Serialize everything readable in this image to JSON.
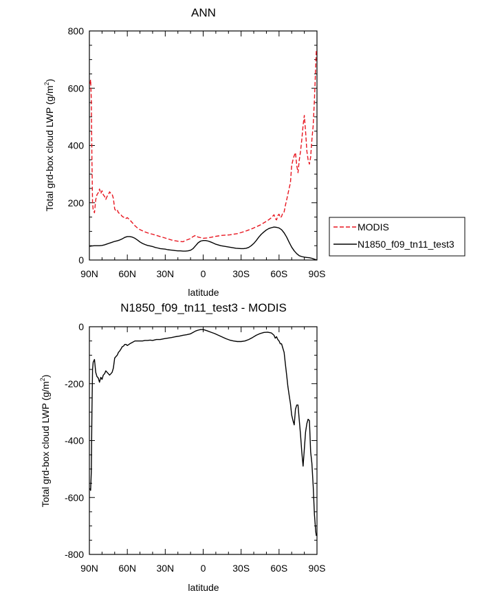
{
  "chart_data": [
    {
      "type": "line",
      "title": "ANN",
      "xlabel": "latitude",
      "ylabel": "Total grd-box cloud LWP (g/m²)",
      "ylabel_main": "Total grd-box cloud LWP (g/m",
      "ylabel_sup": "2",
      "ylabel_close": ")",
      "xlim": [
        90,
        -90
      ],
      "ylim": [
        0,
        800
      ],
      "xticks": [
        {
          "value": 90,
          "label": "90N"
        },
        {
          "value": 60,
          "label": "60N"
        },
        {
          "value": 30,
          "label": "30N"
        },
        {
          "value": 0,
          "label": "0"
        },
        {
          "value": -30,
          "label": "30S"
        },
        {
          "value": -60,
          "label": "60S"
        },
        {
          "value": -90,
          "label": "90S"
        }
      ],
      "yticks": [
        {
          "value": 0,
          "label": "0"
        },
        {
          "value": 200,
          "label": "200"
        },
        {
          "value": 400,
          "label": "400"
        },
        {
          "value": 600,
          "label": "600"
        },
        {
          "value": 800,
          "label": "800"
        }
      ],
      "grid": false,
      "legend": "right",
      "series": [
        {
          "name": "MODIS",
          "color": "#e8141e",
          "dash": "dashed",
          "x": [
            89.5,
            89,
            88.5,
            88,
            87.5,
            87,
            86,
            85,
            84,
            83,
            82,
            81,
            80,
            79,
            78,
            77,
            76,
            75,
            74,
            73,
            72,
            71,
            70,
            69,
            68,
            67,
            66,
            65,
            64,
            63,
            62,
            61,
            60,
            58,
            56,
            54,
            52,
            50,
            48,
            46,
            44,
            42,
            40,
            37,
            34,
            31,
            28,
            25,
            22,
            19,
            16,
            13,
            10,
            8,
            6,
            4,
            2,
            0,
            -3,
            -6,
            -9,
            -12,
            -15,
            -18,
            -21,
            -24,
            -27,
            -30,
            -33,
            -36,
            -39,
            -42,
            -45,
            -48,
            -51,
            -54,
            -56,
            -57,
            -58,
            -59,
            -60,
            -61,
            -62,
            -63,
            -64,
            -65,
            -66,
            -67,
            -68,
            -69,
            -70,
            -71,
            -72,
            -73,
            -74,
            -75,
            -76,
            -77,
            -78,
            -79,
            -80,
            -81,
            -82,
            -83,
            -84,
            -85,
            -86,
            -87,
            -88,
            -89,
            -89.5
          ],
          "y": [
            615,
            630,
            560,
            350,
            200,
            175,
            165,
            210,
            228,
            235,
            248,
            232,
            242,
            228,
            222,
            212,
            222,
            228,
            238,
            232,
            230,
            215,
            178,
            172,
            175,
            165,
            162,
            158,
            152,
            150,
            145,
            145,
            148,
            140,
            130,
            120,
            112,
            106,
            102,
            98,
            95,
            92,
            90,
            86,
            82,
            78,
            74,
            70,
            67,
            65,
            64,
            70,
            75,
            82,
            86,
            80,
            78,
            76,
            77,
            79,
            82,
            84,
            86,
            87,
            88,
            90,
            92,
            96,
            100,
            105,
            110,
            116,
            122,
            130,
            138,
            148,
            158,
            145,
            140,
            155,
            160,
            148,
            152,
            165,
            168,
            190,
            210,
            230,
            250,
            270,
            330,
            350,
            365,
            375,
            330,
            305,
            350,
            380,
            420,
            470,
            505,
            450,
            380,
            350,
            335,
            360,
            420,
            470,
            560,
            680,
            735
          ]
        },
        {
          "name": "N1850_f09_tn11_test3",
          "color": "#000000",
          "dash": "solid",
          "x": [
            90,
            88,
            86,
            84,
            82,
            80,
            78,
            76,
            74,
            72,
            70,
            68,
            66,
            64,
            62,
            60,
            58,
            56,
            54,
            52,
            50,
            48,
            46,
            44,
            42,
            40,
            38,
            36,
            34,
            32,
            30,
            28,
            26,
            24,
            22,
            20,
            18,
            16,
            14,
            12,
            10,
            8,
            6,
            4,
            2,
            0,
            -2,
            -4,
            -6,
            -8,
            -10,
            -14,
            -18,
            -22,
            -26,
            -30,
            -32,
            -34,
            -36,
            -38,
            -40,
            -42,
            -44,
            -46,
            -48,
            -50,
            -52,
            -54,
            -56,
            -58,
            -60,
            -62,
            -64,
            -66,
            -68,
            -70,
            -72,
            -74,
            -76,
            -78,
            -80,
            -82,
            -84,
            -86,
            -88,
            -90
          ],
          "y": [
            48,
            49,
            50,
            50,
            50,
            51,
            53,
            56,
            59,
            62,
            65,
            67,
            70,
            74,
            79,
            82,
            82,
            80,
            76,
            70,
            63,
            58,
            54,
            51,
            49,
            47,
            44,
            42,
            40,
            39,
            38,
            36,
            35,
            34,
            33,
            32,
            32,
            31,
            31,
            32,
            34,
            40,
            50,
            60,
            66,
            68,
            68,
            66,
            63,
            59,
            55,
            50,
            47,
            44,
            41,
            40,
            40,
            41,
            44,
            50,
            58,
            68,
            80,
            90,
            98,
            105,
            110,
            113,
            115,
            114,
            112,
            106,
            95,
            80,
            62,
            45,
            32,
            22,
            15,
            12,
            10,
            9,
            8,
            6,
            3,
            0
          ]
        }
      ]
    },
    {
      "type": "line",
      "title": "N1850_f09_tn11_test3 - MODIS",
      "xlabel": "latitude",
      "ylabel": "Total grd-box cloud LWP (g/m²)",
      "ylabel_main": "Total grd-box cloud LWP (g/m",
      "ylabel_sup": "2",
      "ylabel_close": ")",
      "xlim": [
        90,
        -90
      ],
      "ylim": [
        -800,
        0
      ],
      "xticks": [
        {
          "value": 90,
          "label": "90N"
        },
        {
          "value": 60,
          "label": "60N"
        },
        {
          "value": 30,
          "label": "30N"
        },
        {
          "value": 0,
          "label": "0"
        },
        {
          "value": -30,
          "label": "30S"
        },
        {
          "value": -60,
          "label": "60S"
        },
        {
          "value": -90,
          "label": "90S"
        }
      ],
      "yticks": [
        {
          "value": 0,
          "label": "0"
        },
        {
          "value": -200,
          "label": "-200"
        },
        {
          "value": -400,
          "label": "-400"
        },
        {
          "value": -600,
          "label": "-600"
        },
        {
          "value": -800,
          "label": "-800"
        }
      ],
      "grid": false,
      "series": [
        {
          "color": "#000000",
          "dash": "solid",
          "x": [
            89.5,
            89,
            88.5,
            88,
            87.5,
            87,
            86,
            85,
            84,
            83,
            82,
            81,
            80,
            79,
            78,
            77,
            76,
            75,
            74,
            73,
            72,
            71,
            70,
            69,
            68,
            67,
            66,
            65,
            64,
            63,
            62,
            61,
            60,
            58,
            56,
            54,
            52,
            50,
            48,
            46,
            44,
            42,
            40,
            37,
            34,
            31,
            28,
            25,
            22,
            19,
            16,
            13,
            10,
            8,
            6,
            4,
            2,
            0,
            -3,
            -6,
            -9,
            -12,
            -15,
            -18,
            -21,
            -24,
            -27,
            -30,
            -33,
            -36,
            -39,
            -42,
            -45,
            -48,
            -51,
            -54,
            -56,
            -57,
            -58,
            -59,
            -60,
            -61,
            -62,
            -63,
            -64,
            -65,
            -66,
            -67,
            -68,
            -69,
            -70,
            -71,
            -72,
            -73,
            -74,
            -75,
            -76,
            -77,
            -78,
            -79,
            -80,
            -81,
            -82,
            -83,
            -84,
            -85,
            -86,
            -87,
            -88,
            -89,
            -89.5
          ],
          "y": [
            -568,
            -575,
            -510,
            -300,
            -150,
            -125,
            -115,
            -160,
            -175,
            -180,
            -195,
            -178,
            -185,
            -170,
            -165,
            -155,
            -160,
            -165,
            -170,
            -165,
            -160,
            -145,
            -110,
            -105,
            -100,
            -90,
            -85,
            -78,
            -70,
            -68,
            -62,
            -62,
            -66,
            -60,
            -55,
            -50,
            -50,
            -50,
            -50,
            -48,
            -48,
            -47,
            -48,
            -45,
            -45,
            -42,
            -40,
            -38,
            -35,
            -33,
            -30,
            -28,
            -25,
            -20,
            -15,
            -12,
            -10,
            -10,
            -14,
            -19,
            -24,
            -30,
            -36,
            -42,
            -47,
            -50,
            -52,
            -52,
            -50,
            -45,
            -38,
            -30,
            -24,
            -20,
            -19,
            -22,
            -30,
            -40,
            -35,
            -45,
            -50,
            -60,
            -60,
            -75,
            -90,
            -130,
            -170,
            -210,
            -240,
            -270,
            -310,
            -330,
            -345,
            -290,
            -275,
            -275,
            -330,
            -380,
            -440,
            -490,
            -430,
            -370,
            -340,
            -325,
            -330,
            -440,
            -480,
            -560,
            -660,
            -720,
            -735
          ]
        }
      ]
    }
  ]
}
